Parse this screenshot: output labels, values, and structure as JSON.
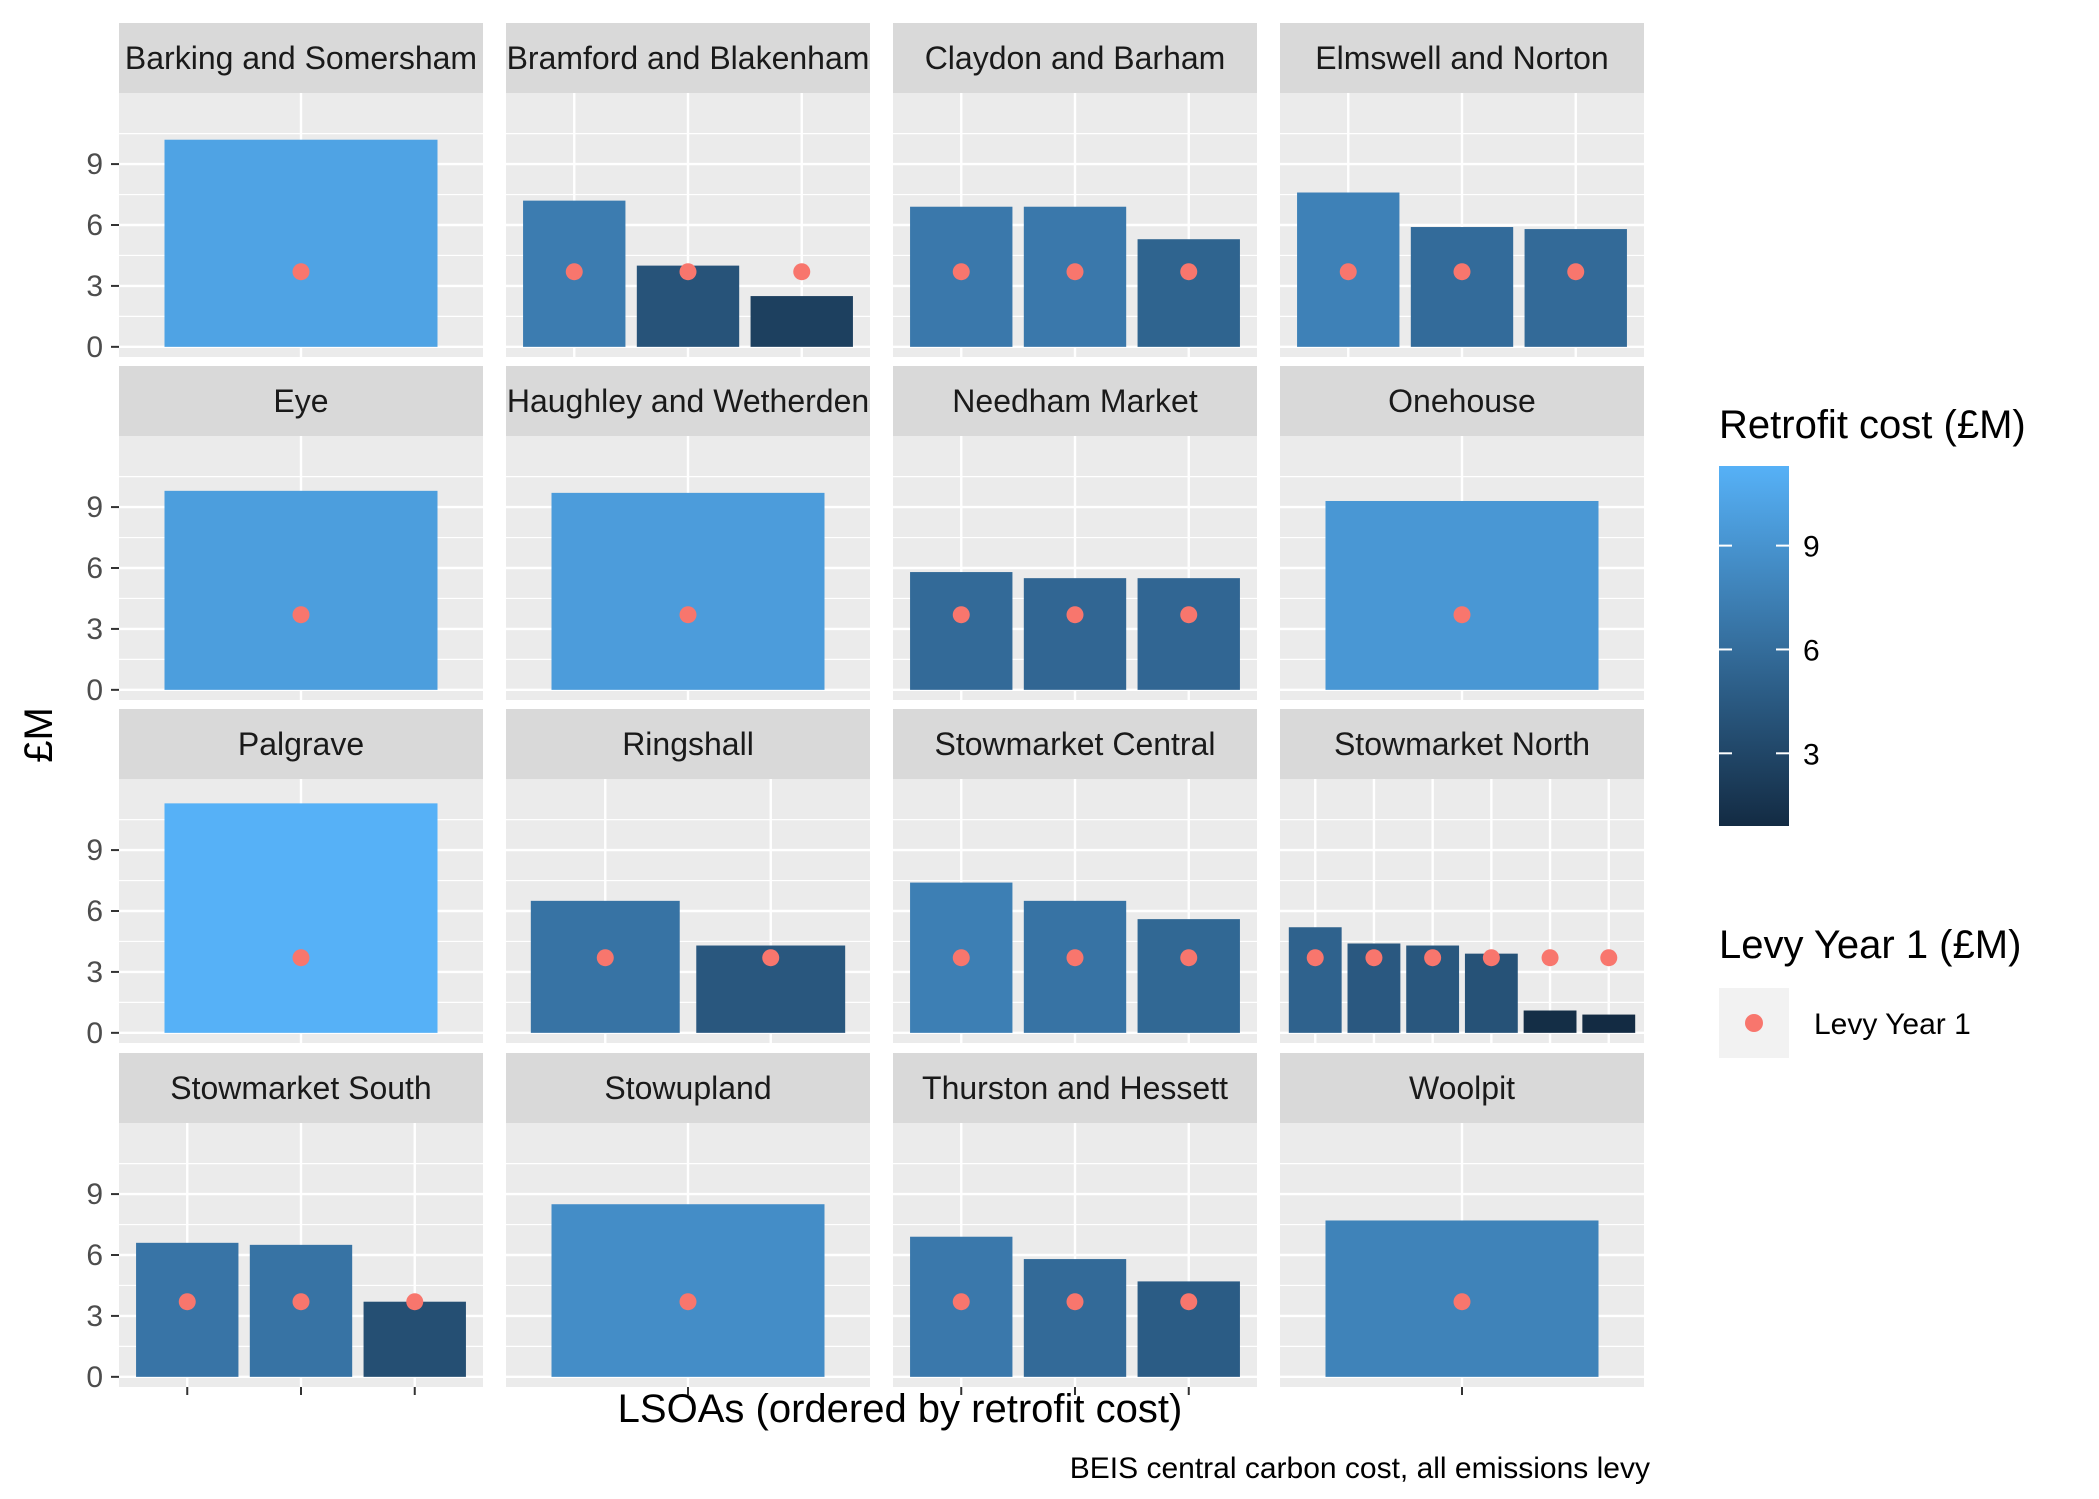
{
  "chart_data": {
    "type": "bar",
    "xlabel": "LSOAs (ordered by retrofit cost)",
    "ylabel": "£M",
    "caption": "BEIS central carbon cost, all emissions levy",
    "ylim": [
      -0.5,
      12.5
    ],
    "yticks": [
      0,
      3,
      6,
      9
    ],
    "fill_scale": {
      "low": "#132B43",
      "high": "#56B1F7",
      "domain": [
        0.9,
        11.3
      ]
    },
    "point_color": "#F8766D",
    "legend_placement": "right",
    "panels": [
      {
        "title": "Barking and Somersham",
        "values": [
          10.2
        ],
        "levy": [
          3.7
        ]
      },
      {
        "title": "Bramford and Blakenham",
        "values": [
          7.2,
          4.0,
          2.5
        ],
        "levy": [
          3.7,
          3.7,
          3.7
        ]
      },
      {
        "title": "Claydon and Barham",
        "values": [
          6.9,
          6.9,
          5.3
        ],
        "levy": [
          3.7,
          3.7,
          3.7
        ]
      },
      {
        "title": "Elmswell and Norton",
        "values": [
          7.6,
          5.9,
          5.8
        ],
        "levy": [
          3.7,
          3.7,
          3.7
        ]
      },
      {
        "title": "Eye",
        "values": [
          9.8
        ],
        "levy": [
          3.7
        ]
      },
      {
        "title": "Haughley and Wetherden",
        "values": [
          9.7
        ],
        "levy": [
          3.7
        ]
      },
      {
        "title": "Needham Market",
        "values": [
          5.8,
          5.5,
          5.5
        ],
        "levy": [
          3.7,
          3.7,
          3.7
        ]
      },
      {
        "title": "Onehouse",
        "values": [
          9.3
        ],
        "levy": [
          3.7
        ]
      },
      {
        "title": "Palgrave",
        "values": [
          11.3
        ],
        "levy": [
          3.7
        ]
      },
      {
        "title": "Ringshall",
        "values": [
          6.5,
          4.3
        ],
        "levy": [
          3.7,
          3.7
        ]
      },
      {
        "title": "Stowmarket Central",
        "values": [
          7.4,
          6.5,
          5.6
        ],
        "levy": [
          3.7,
          3.7,
          3.7
        ]
      },
      {
        "title": "Stowmarket North",
        "values": [
          5.2,
          4.4,
          4.3,
          3.9,
          1.1,
          0.9
        ],
        "levy": [
          3.7,
          3.7,
          3.7,
          3.7,
          3.7,
          3.7
        ]
      },
      {
        "title": "Stowmarket South",
        "values": [
          6.6,
          6.5,
          3.7
        ],
        "levy": [
          3.7,
          3.7,
          3.7
        ]
      },
      {
        "title": "Stowupland",
        "values": [
          8.5
        ],
        "levy": [
          3.7
        ]
      },
      {
        "title": "Thurston and Hessett",
        "values": [
          6.9,
          5.8,
          4.7
        ],
        "levy": [
          3.7,
          3.7,
          3.7
        ]
      },
      {
        "title": "Woolpit",
        "values": [
          7.7
        ],
        "levy": [
          3.7
        ]
      }
    ],
    "legend": {
      "fill": {
        "title": "Retrofit cost (£M)",
        "ticks": [
          3,
          6,
          9
        ]
      },
      "point": {
        "title": "Levy Year 1 (£M)",
        "label": "Levy Year 1"
      }
    }
  }
}
